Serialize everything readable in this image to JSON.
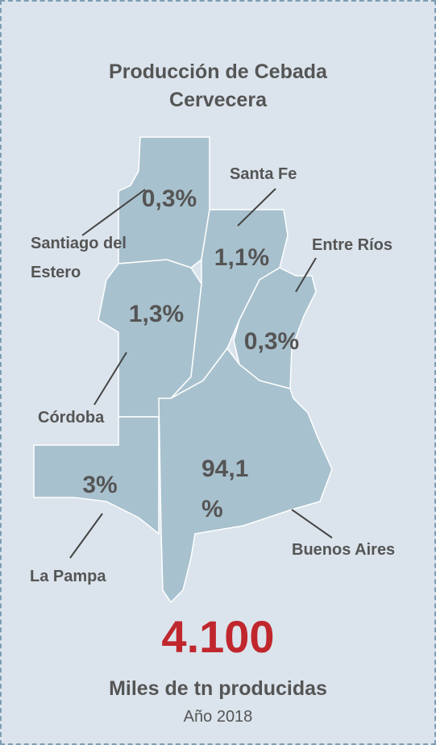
{
  "title": "Producción de Cebada Cervecera",
  "provinces": [
    {
      "name": "Santiago del Estero",
      "share": "0,3%"
    },
    {
      "name": "Santa Fe",
      "share": "1,1%"
    },
    {
      "name": "Entre Ríos",
      "share": "0,3%"
    },
    {
      "name": "Córdoba",
      "share": "1,3%"
    },
    {
      "name": "La Pampa",
      "share": "3%"
    },
    {
      "name": "Buenos Aires",
      "share": "94,1 %"
    }
  ],
  "total": "4.100",
  "total_caption": "Miles de tn producidas",
  "year_label": "Año 2018"
}
